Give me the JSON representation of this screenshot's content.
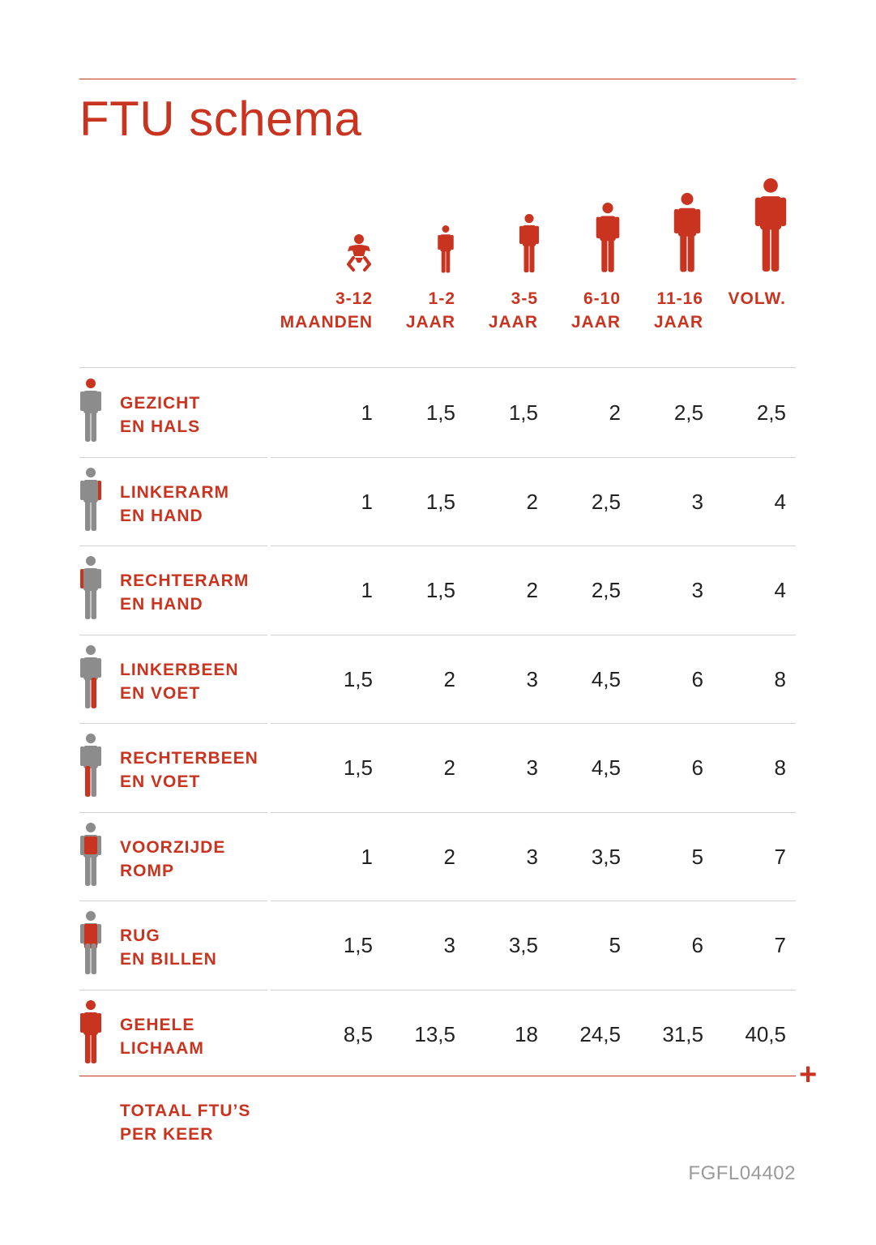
{
  "title": "FTU schema",
  "colors": {
    "accent": "#c8341f",
    "body_gray": "#8c8c8c"
  },
  "columns": [
    {
      "line1": "3-12",
      "line2": "MAANDEN",
      "icon": "baby-icon"
    },
    {
      "line1": "1-2",
      "line2": "JAAR",
      "icon": "toddler-icon"
    },
    {
      "line1": "3-5",
      "line2": "JAAR",
      "icon": "child-icon"
    },
    {
      "line1": "6-10",
      "line2": "JAAR",
      "icon": "child-icon"
    },
    {
      "line1": "11-16",
      "line2": "JAAR",
      "icon": "teen-icon"
    },
    {
      "line1": "VOLW.",
      "line2": "",
      "icon": "adult-icon"
    }
  ],
  "rows": [
    {
      "line1": "GEZICHT",
      "line2": "EN HALS",
      "highlight": "head",
      "values": [
        "1",
        "1,5",
        "1,5",
        "2",
        "2,5",
        "2,5"
      ]
    },
    {
      "line1": "LINKERARM",
      "line2": "EN HAND",
      "highlight": "left-arm",
      "values": [
        "1",
        "1,5",
        "2",
        "2,5",
        "3",
        "4"
      ]
    },
    {
      "line1": "RECHTERARM",
      "line2": "EN HAND",
      "highlight": "right-arm",
      "values": [
        "1",
        "1,5",
        "2",
        "2,5",
        "3",
        "4"
      ]
    },
    {
      "line1": "LINKERBEEN",
      "line2": "EN VOET",
      "highlight": "left-leg",
      "values": [
        "1,5",
        "2",
        "3",
        "4,5",
        "6",
        "8"
      ]
    },
    {
      "line1": "RECHTERBEEN",
      "line2": "EN VOET",
      "highlight": "right-leg",
      "values": [
        "1,5",
        "2",
        "3",
        "4,5",
        "6",
        "8"
      ]
    },
    {
      "line1": "VOORZIJDE",
      "line2": "ROMP",
      "highlight": "front-torso",
      "values": [
        "1",
        "2",
        "3",
        "3,5",
        "5",
        "7"
      ]
    },
    {
      "line1": "RUG",
      "line2": "EN BILLEN",
      "highlight": "back",
      "values": [
        "1,5",
        "3",
        "3,5",
        "5",
        "6",
        "7"
      ]
    },
    {
      "line1": "GEHELE",
      "line2": "LICHAAM",
      "highlight": "whole",
      "values": [
        "8,5",
        "13,5",
        "18",
        "24,5",
        "31,5",
        "40,5"
      ]
    }
  ],
  "total": {
    "line1": "TOTAAL FTU’S",
    "line2": "PER KEER",
    "plus": "+"
  },
  "code": "FGFL04402"
}
